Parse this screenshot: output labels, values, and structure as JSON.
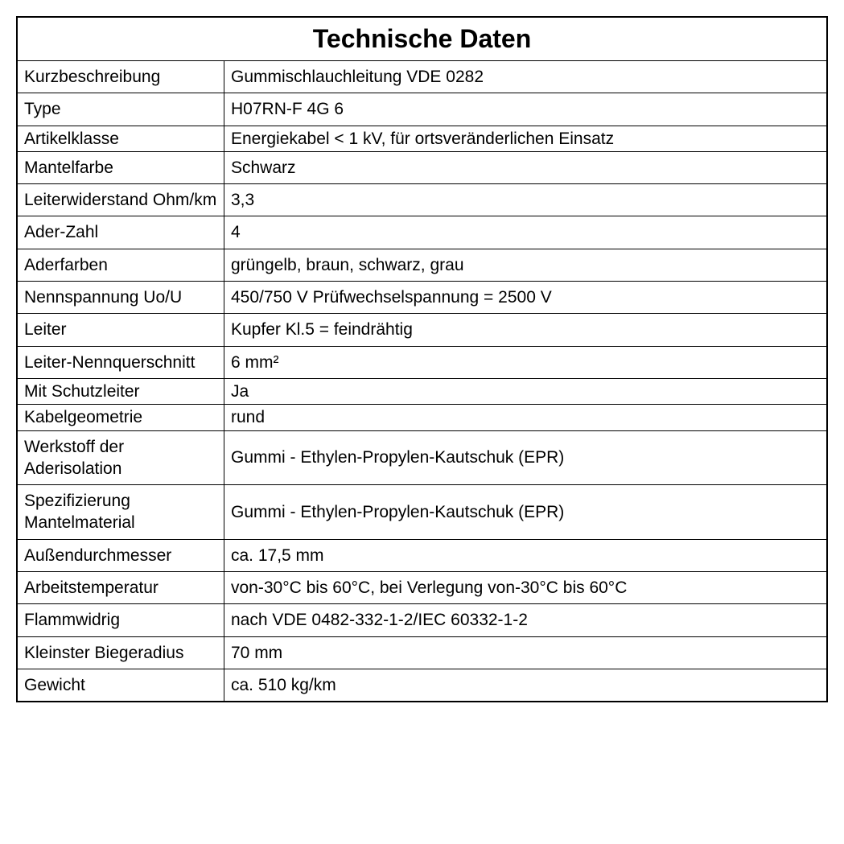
{
  "table": {
    "title": "Technische Daten",
    "title_fontsize": 32,
    "title_fontweight": 900,
    "border_color": "#000000",
    "background_color": "#ffffff",
    "text_color": "#000000",
    "cell_fontsize": 21,
    "label_col_width": 240,
    "rows": [
      {
        "label": "Kurzbeschreibung",
        "value": "Gummischlauchleitung VDE 0282",
        "padding": "normal"
      },
      {
        "label": "Type",
        "value": "H07RN-F 4G 6",
        "padding": "normal"
      },
      {
        "label": "Artikelklasse",
        "value": "Energiekabel < 1 kV, für ortsveränderlichen Einsatz",
        "padding": "tight"
      },
      {
        "label": "Mantelfarbe",
        "value": "Schwarz",
        "padding": "normal"
      },
      {
        "label": "Leiterwiderstand Ohm/km",
        "value": "3,3",
        "padding": "normal"
      },
      {
        "label": "Ader-Zahl",
        "value": "4",
        "padding": "normal"
      },
      {
        "label": "Aderfarben",
        "value": "grüngelb, braun, schwarz, grau",
        "padding": "normal"
      },
      {
        "label": "Nennspannung Uo/U",
        "value": "450/750 V Prüfwechselspannung = 2500 V",
        "padding": "normal"
      },
      {
        "label": "Leiter",
        "value": "Kupfer Kl.5 = feindrähtig",
        "padding": "normal"
      },
      {
        "label": "Leiter-Nennquerschnitt",
        "value": "6 mm²",
        "padding": "normal"
      },
      {
        "label": "Mit Schutzleiter",
        "value": "Ja",
        "padding": "tight"
      },
      {
        "label": "Kabelgeometrie",
        "value": "rund",
        "padding": "tight"
      },
      {
        "label": "Werkstoff der Aderisolation",
        "value": "Gummi - Ethylen-Propylen-Kautschuk (EPR)",
        "padding": "normal"
      },
      {
        "label": "Spezifizierung Mantelmaterial",
        "value": "Gummi - Ethylen-Propylen-Kautschuk (EPR)",
        "padding": "normal"
      },
      {
        "label": "Außendurchmesser",
        "value": "ca. 17,5 mm",
        "padding": "normal"
      },
      {
        "label": "Arbeitstemperatur",
        "value": "von-30°C bis 60°C, bei Verlegung von-30°C bis 60°C",
        "padding": "normal"
      },
      {
        "label": "Flammwidrig",
        "value": "nach VDE 0482-332-1-2/IEC 60332-1-2",
        "padding": "normal"
      },
      {
        "label": "Kleinster Biegeradius",
        "value": "70 mm",
        "padding": "normal"
      },
      {
        "label": "Gewicht",
        "value": "ca. 510 kg/km",
        "padding": "normal"
      }
    ]
  }
}
